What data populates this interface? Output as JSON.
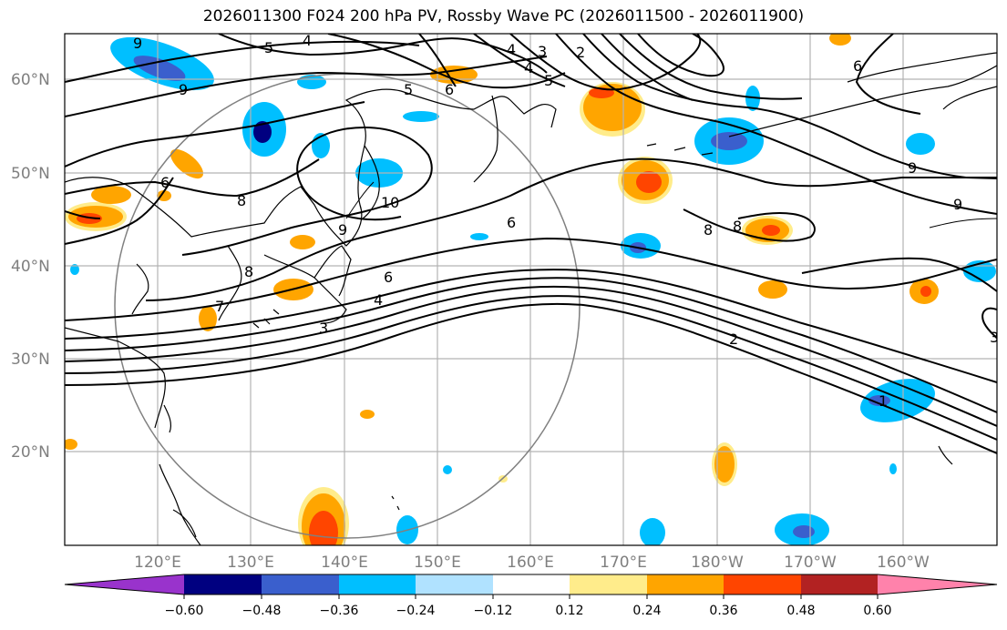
{
  "title": "2026011300 F024 200 hPa PV, Rossby Wave PC (2026011500 - 2026011900)",
  "lat_labels": [
    "60°N",
    "50°N",
    "40°N",
    "30°N",
    "20°N"
  ],
  "lon_labels": [
    "120°E",
    "130°E",
    "140°E",
    "150°E",
    "160°E",
    "170°E",
    "180°W",
    "170°W",
    "160°W"
  ],
  "contour_labels": [
    "9",
    "4",
    "5",
    "4",
    "3",
    "2",
    "5",
    "6",
    "4",
    "5",
    "6",
    "9",
    "9",
    "9",
    "6",
    "8",
    "10",
    "9",
    "6",
    "8",
    "8",
    "8",
    "6",
    "7",
    "4",
    "3",
    "2",
    "1",
    "3"
  ],
  "colorbar": {
    "ticks": [
      "−0.60",
      "−0.48",
      "−0.36",
      "−0.24",
      "−0.12",
      "0.12",
      "0.24",
      "0.36",
      "0.48",
      "0.60"
    ],
    "colors": [
      "#9933cc",
      "#000080",
      "#3a5fcd",
      "#00bfff",
      "#b0e2ff",
      "#ffffff",
      "#ffec8b",
      "#ffa500",
      "#ff4500",
      "#b22222",
      "#ff82ab"
    ]
  }
}
